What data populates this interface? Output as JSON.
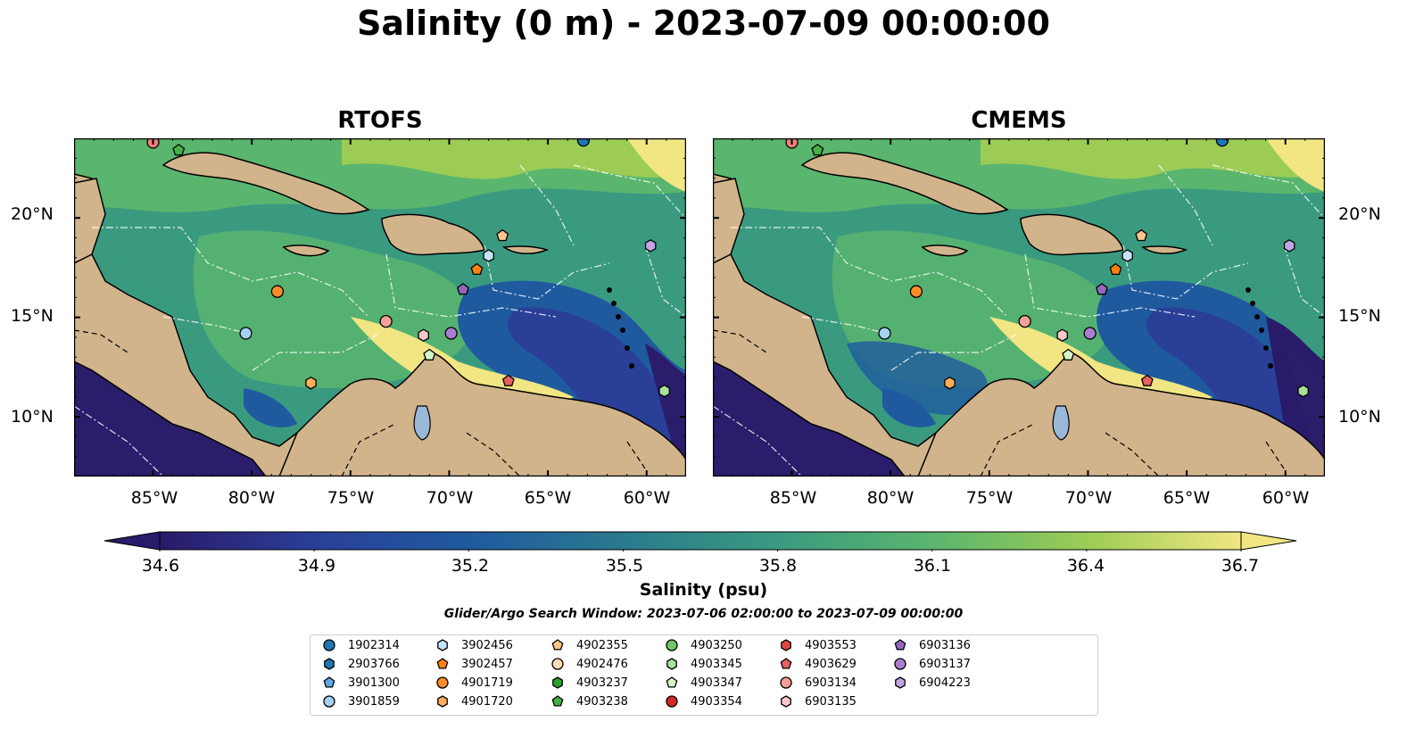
{
  "title": "Salinity (0 m) - 2023-07-09 00:00:00",
  "panels": [
    {
      "title": "RTOFS"
    },
    {
      "title": "CMEMS"
    }
  ],
  "lon_ticks": [
    "85°W",
    "80°W",
    "75°W",
    "70°W",
    "65°W",
    "60°W"
  ],
  "lat_ticks": [
    "20°N",
    "15°N",
    "10°N"
  ],
  "map_extent": {
    "lon": [
      -89,
      -58
    ],
    "lat": [
      7,
      24
    ]
  },
  "colorbar": {
    "label": "Salinity (psu)",
    "min": 34.6,
    "max": 36.7,
    "ticks": [
      "34.6",
      "34.9",
      "35.2",
      "35.5",
      "35.8",
      "36.1",
      "36.4",
      "36.7"
    ],
    "colors": [
      "#2a1a6a",
      "#2a3f98",
      "#1f5a9f",
      "#2a7a8e",
      "#3a9a80",
      "#5ab56e",
      "#9ccc56",
      "#f1e683"
    ],
    "extend": "both"
  },
  "map_colors": {
    "land": "#d2b48c",
    "deep_ocean": "#2b1d6b",
    "lakes": "#9ab8d8"
  },
  "search_window": "Glider/Argo Search Window: 2023-07-06 02:00:00 to 2023-07-09 00:00:00",
  "floats": [
    {
      "id": "1902314",
      "color": "#1f77b4",
      "marker": "circle",
      "lon": -63.2,
      "lat": 23.9
    },
    {
      "id": "2903766",
      "color": "#1f77b4",
      "marker": "hexagon"
    },
    {
      "id": "3901300",
      "color": "#5fa8e8",
      "marker": "pentagon"
    },
    {
      "id": "3901859",
      "color": "#a6d0f0",
      "marker": "circle",
      "lon": -80.3,
      "lat": 14.2
    },
    {
      "id": "3902456",
      "color": "#c6e4f8",
      "marker": "hexagon",
      "lon": -68.0,
      "lat": 18.1
    },
    {
      "id": "3902457",
      "color": "#ff7f0e",
      "marker": "pentagon",
      "lon": -68.6,
      "lat": 17.4
    },
    {
      "id": "4901719",
      "color": "#ff8c2a",
      "marker": "circle",
      "lon": -78.7,
      "lat": 16.3
    },
    {
      "id": "4901720",
      "color": "#ffae5c",
      "marker": "hexagon",
      "lon": -77.0,
      "lat": 11.7
    },
    {
      "id": "4902355",
      "color": "#ffc58a",
      "marker": "pentagon",
      "lon": -67.3,
      "lat": 19.1
    },
    {
      "id": "4902476",
      "color": "#ffddb8",
      "marker": "circle"
    },
    {
      "id": "4903237",
      "color": "#2ca02c",
      "marker": "hexagon"
    },
    {
      "id": "4903238",
      "color": "#45b045",
      "marker": "pentagon",
      "lon": -83.7,
      "lat": 23.4
    },
    {
      "id": "4903250",
      "color": "#74c46a",
      "marker": "circle"
    },
    {
      "id": "4903345",
      "color": "#a6e09b",
      "marker": "hexagon",
      "lon": -59.1,
      "lat": 11.3
    },
    {
      "id": "4903347",
      "color": "#d5f5c8",
      "marker": "pentagon",
      "lon": -71.0,
      "lat": 13.1
    },
    {
      "id": "4903354",
      "color": "#d62728",
      "marker": "circle"
    },
    {
      "id": "4903553",
      "color": "#e04545",
      "marker": "hexagon"
    },
    {
      "id": "4903629",
      "color": "#e86060",
      "marker": "pentagon",
      "lon": -67.0,
      "lat": 11.8
    },
    {
      "id": "6903134",
      "color": "#f4a09a",
      "marker": "circle",
      "lon": -73.2,
      "lat": 14.8
    },
    {
      "id": "6903135",
      "color": "#fcc8c8",
      "marker": "hexagon",
      "lon": -71.3,
      "lat": 14.1
    },
    {
      "id": "6903136",
      "color": "#9467bd",
      "marker": "pentagon",
      "lon": -69.3,
      "lat": 16.4
    },
    {
      "id": "6903137",
      "color": "#a87fd0",
      "marker": "circle",
      "lon": -69.9,
      "lat": 14.2
    },
    {
      "id": "6904223",
      "color": "#c3a4e3",
      "marker": "hexagon",
      "lon": -59.8,
      "lat": 18.6
    },
    {
      "id": "extra-1",
      "color": "#f08080",
      "marker": "circle",
      "lon": -85.0,
      "lat": 23.8
    }
  ]
}
